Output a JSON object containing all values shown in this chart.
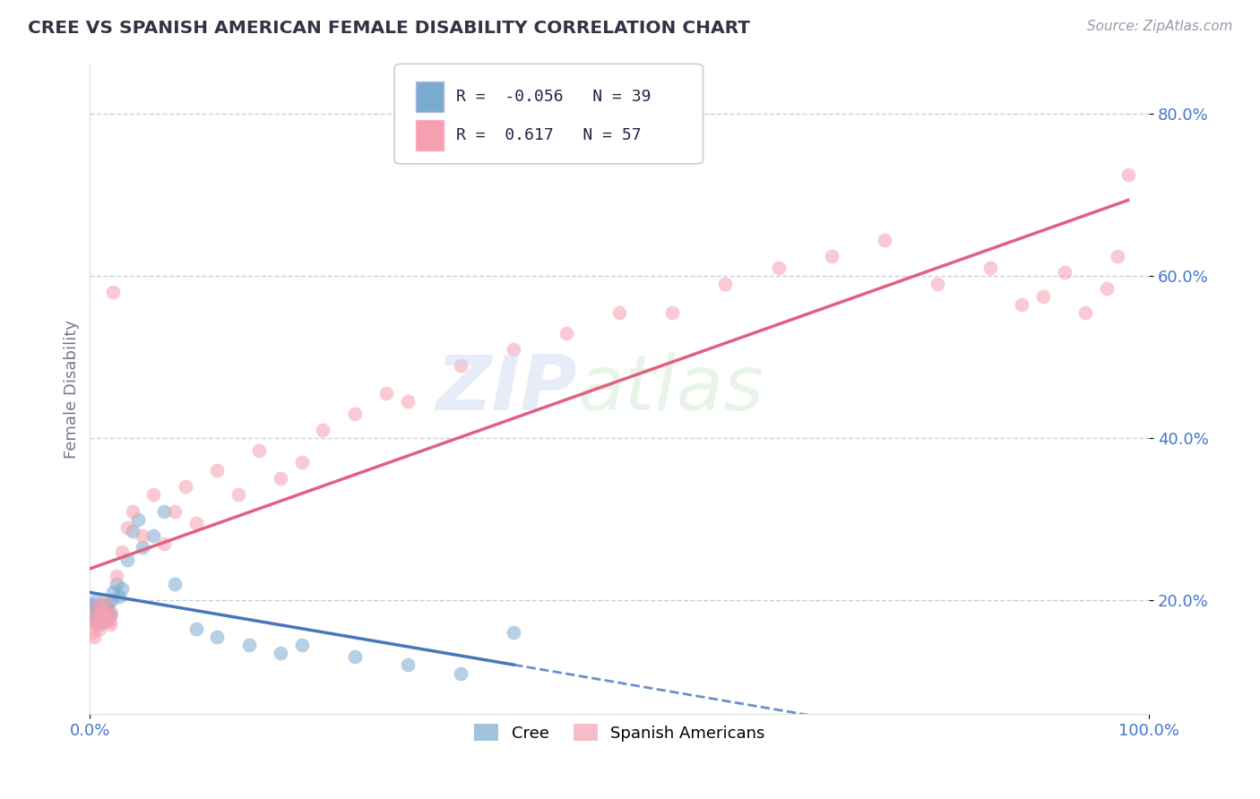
{
  "title": "CREE VS SPANISH AMERICAN FEMALE DISABILITY CORRELATION CHART",
  "source": "Source: ZipAtlas.com",
  "ylabel": "Female Disability",
  "cree_R": -0.056,
  "cree_N": 39,
  "spanish_R": 0.617,
  "spanish_N": 57,
  "cree_color": "#7AAAD0",
  "spanish_color": "#F5A0B0",
  "cree_line_color": "#4477BB",
  "spanish_line_color": "#E06080",
  "watermark_zip": "ZIP",
  "watermark_atlas": "atlas",
  "cree_x": [
    0.002,
    0.003,
    0.004,
    0.005,
    0.006,
    0.007,
    0.008,
    0.009,
    0.01,
    0.011,
    0.012,
    0.013,
    0.014,
    0.015,
    0.016,
    0.017,
    0.018,
    0.019,
    0.02,
    0.022,
    0.025,
    0.028,
    0.03,
    0.035,
    0.04,
    0.045,
    0.05,
    0.06,
    0.07,
    0.08,
    0.1,
    0.12,
    0.15,
    0.18,
    0.2,
    0.25,
    0.3,
    0.35,
    0.4
  ],
  "cree_y": [
    0.195,
    0.185,
    0.175,
    0.19,
    0.2,
    0.18,
    0.185,
    0.17,
    0.19,
    0.195,
    0.185,
    0.18,
    0.175,
    0.19,
    0.185,
    0.195,
    0.185,
    0.18,
    0.2,
    0.21,
    0.22,
    0.205,
    0.215,
    0.25,
    0.285,
    0.3,
    0.265,
    0.28,
    0.31,
    0.22,
    0.165,
    0.155,
    0.145,
    0.135,
    0.145,
    0.13,
    0.12,
    0.11,
    0.16
  ],
  "spanish_x": [
    0.002,
    0.003,
    0.004,
    0.005,
    0.006,
    0.007,
    0.008,
    0.009,
    0.01,
    0.011,
    0.012,
    0.013,
    0.014,
    0.015,
    0.016,
    0.017,
    0.018,
    0.019,
    0.02,
    0.022,
    0.025,
    0.03,
    0.035,
    0.04,
    0.05,
    0.06,
    0.07,
    0.08,
    0.09,
    0.1,
    0.12,
    0.14,
    0.16,
    0.18,
    0.2,
    0.22,
    0.25,
    0.28,
    0.3,
    0.35,
    0.4,
    0.45,
    0.5,
    0.55,
    0.6,
    0.65,
    0.7,
    0.75,
    0.8,
    0.85,
    0.88,
    0.9,
    0.92,
    0.94,
    0.96,
    0.97,
    0.98
  ],
  "spanish_y": [
    0.16,
    0.175,
    0.155,
    0.185,
    0.17,
    0.195,
    0.175,
    0.165,
    0.18,
    0.19,
    0.185,
    0.175,
    0.18,
    0.2,
    0.185,
    0.175,
    0.175,
    0.17,
    0.185,
    0.58,
    0.23,
    0.26,
    0.29,
    0.31,
    0.28,
    0.33,
    0.27,
    0.31,
    0.34,
    0.295,
    0.36,
    0.33,
    0.385,
    0.35,
    0.37,
    0.41,
    0.43,
    0.455,
    0.445,
    0.49,
    0.51,
    0.53,
    0.555,
    0.555,
    0.59,
    0.61,
    0.625,
    0.645,
    0.59,
    0.61,
    0.565,
    0.575,
    0.605,
    0.555,
    0.585,
    0.625,
    0.725
  ],
  "xlim": [
    0.0,
    1.0
  ],
  "ylim": [
    0.06,
    0.86
  ],
  "yticks": [
    0.2,
    0.4,
    0.6,
    0.8
  ],
  "grid_color": "#CCCCDD",
  "background_color": "#FFFFFF",
  "title_color": "#333344",
  "axis_label_color": "#777788",
  "tick_color": "#4477CC"
}
